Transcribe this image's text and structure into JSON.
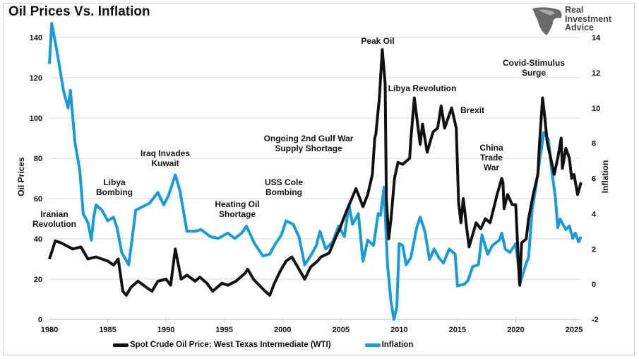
{
  "title": "Oil Prices Vs. Inflation",
  "logo": {
    "lines": [
      "Real",
      "Investment",
      "Advice"
    ]
  },
  "colors": {
    "oil": "#111111",
    "inflation": "#1a9ad6",
    "grid": "#d9d9d9"
  },
  "chart_data": {
    "type": "line",
    "title": "Oil Prices Vs. Inflation",
    "xlabel": "",
    "ylabel_left": "Oil Prices",
    "ylabel_right": "Inflation",
    "xlim": [
      1980,
      2025.8
    ],
    "ylim_left": [
      0,
      140
    ],
    "ylim_right": [
      -2,
      14
    ],
    "x_ticks": [
      "1980",
      "1985",
      "1990",
      "1995",
      "2000",
      "2005",
      "2010",
      "2015",
      "2020",
      "2025"
    ],
    "y_ticks_left": [
      "0",
      "20",
      "40",
      "60",
      "80",
      "100",
      "120",
      "140"
    ],
    "y_ticks_right": [
      "-2",
      "0",
      "2",
      "4",
      "6",
      "8",
      "10",
      "12",
      "14"
    ],
    "grid": true,
    "legend_position": "bottom",
    "series": [
      {
        "name": "Spot Crude Oil Price: West Texas Intermediate (WTI)",
        "axis": "left",
        "points": [
          [
            1980.0,
            30
          ],
          [
            1980.5,
            39
          ],
          [
            1981.0,
            38
          ],
          [
            1982.0,
            35
          ],
          [
            1982.7,
            36
          ],
          [
            1983.3,
            30
          ],
          [
            1984.0,
            31
          ],
          [
            1985.0,
            29
          ],
          [
            1985.5,
            27
          ],
          [
            1985.9,
            30
          ],
          [
            1986.3,
            14
          ],
          [
            1986.6,
            12
          ],
          [
            1987.0,
            16
          ],
          [
            1987.6,
            19
          ],
          [
            1988.3,
            16
          ],
          [
            1988.8,
            14
          ],
          [
            1989.3,
            19
          ],
          [
            1990.0,
            20
          ],
          [
            1990.4,
            17
          ],
          [
            1990.8,
            35
          ],
          [
            1991.3,
            20
          ],
          [
            1991.8,
            22
          ],
          [
            1992.5,
            19
          ],
          [
            1992.9,
            21
          ],
          [
            1993.5,
            18
          ],
          [
            1994.0,
            14
          ],
          [
            1994.8,
            18
          ],
          [
            1995.3,
            17
          ],
          [
            1996.0,
            19
          ],
          [
            1996.8,
            23
          ],
          [
            1997.0,
            25
          ],
          [
            1997.5,
            20
          ],
          [
            1998.0,
            17
          ],
          [
            1998.5,
            14
          ],
          [
            1998.9,
            12
          ],
          [
            1999.3,
            18
          ],
          [
            1999.8,
            24
          ],
          [
            2000.3,
            29
          ],
          [
            2000.8,
            31
          ],
          [
            2001.3,
            26
          ],
          [
            2001.9,
            20
          ],
          [
            2002.4,
            26
          ],
          [
            2003.0,
            29
          ],
          [
            2003.3,
            31
          ],
          [
            2004.0,
            33
          ],
          [
            2004.5,
            40
          ],
          [
            2004.9,
            45
          ],
          [
            2005.5,
            54
          ],
          [
            2006.3,
            65
          ],
          [
            2006.9,
            56
          ],
          [
            2007.3,
            62
          ],
          [
            2007.7,
            72
          ],
          [
            2007.9,
            90
          ],
          [
            2008.0,
            92
          ],
          [
            2008.3,
            110
          ],
          [
            2008.55,
            134
          ],
          [
            2008.8,
            117
          ],
          [
            2008.9,
            60
          ],
          [
            2009.1,
            40
          ],
          [
            2009.3,
            50
          ],
          [
            2009.6,
            70
          ],
          [
            2009.9,
            78
          ],
          [
            2010.3,
            77
          ],
          [
            2010.9,
            80
          ],
          [
            2011.0,
            89
          ],
          [
            2011.3,
            110
          ],
          [
            2011.8,
            87
          ],
          [
            2012.0,
            97
          ],
          [
            2012.4,
            83
          ],
          [
            2012.9,
            93
          ],
          [
            2013.3,
            95
          ],
          [
            2013.6,
            106
          ],
          [
            2013.9,
            95
          ],
          [
            2014.2,
            100
          ],
          [
            2014.5,
            105
          ],
          [
            2014.9,
            95
          ],
          [
            2015.1,
            58
          ],
          [
            2015.3,
            48
          ],
          [
            2015.5,
            60
          ],
          [
            2015.8,
            45
          ],
          [
            2016.0,
            36
          ],
          [
            2016.2,
            40
          ],
          [
            2016.6,
            48
          ],
          [
            2017.0,
            45
          ],
          [
            2017.4,
            50
          ],
          [
            2017.8,
            48
          ],
          [
            2018.1,
            55
          ],
          [
            2018.4,
            62
          ],
          [
            2018.8,
            70
          ],
          [
            2018.9,
            68
          ],
          [
            2019.0,
            55
          ],
          [
            2019.3,
            62
          ],
          [
            2019.7,
            57
          ],
          [
            2020.0,
            57
          ],
          [
            2020.3,
            20
          ],
          [
            2020.35,
            17
          ],
          [
            2020.5,
            38
          ],
          [
            2020.9,
            40
          ],
          [
            2021.1,
            50
          ],
          [
            2021.5,
            62
          ],
          [
            2021.9,
            72
          ],
          [
            2022.0,
            84
          ],
          [
            2022.3,
            110
          ],
          [
            2022.5,
            100
          ],
          [
            2022.7,
            88
          ],
          [
            2023.0,
            80
          ],
          [
            2023.3,
            72
          ],
          [
            2023.6,
            80
          ],
          [
            2023.9,
            90
          ],
          [
            2024.0,
            75
          ],
          [
            2024.3,
            85
          ],
          [
            2024.6,
            80
          ],
          [
            2024.8,
            70
          ],
          [
            2025.0,
            72
          ],
          [
            2025.3,
            62
          ],
          [
            2025.6,
            68
          ]
        ]
      },
      {
        "name": "Inflation",
        "axis": "right",
        "points": [
          [
            1980.0,
            12.5
          ],
          [
            1980.2,
            14.8
          ],
          [
            1980.7,
            13
          ],
          [
            1981.2,
            11
          ],
          [
            1981.6,
            10
          ],
          [
            1981.8,
            11
          ],
          [
            1982.2,
            8
          ],
          [
            1982.6,
            6.5
          ],
          [
            1982.9,
            4
          ],
          [
            1983.3,
            3.5
          ],
          [
            1983.6,
            2.5
          ],
          [
            1983.8,
            3.8
          ],
          [
            1984.0,
            4.5
          ],
          [
            1984.5,
            4.2
          ],
          [
            1985.0,
            3.6
          ],
          [
            1985.5,
            3.8
          ],
          [
            1985.8,
            3.2
          ],
          [
            1986.2,
            1.8
          ],
          [
            1986.8,
            1.1
          ],
          [
            1987.1,
            2.6
          ],
          [
            1987.4,
            4.2
          ],
          [
            1988.0,
            4.4
          ],
          [
            1988.6,
            4.6
          ],
          [
            1989.3,
            5.2
          ],
          [
            1989.8,
            4.5
          ],
          [
            1990.2,
            5.0
          ],
          [
            1990.8,
            6.2
          ],
          [
            1991.2,
            5.3
          ],
          [
            1991.8,
            3.0
          ],
          [
            1992.5,
            3.0
          ],
          [
            1993.0,
            3.1
          ],
          [
            1993.8,
            2.7
          ],
          [
            1994.5,
            2.6
          ],
          [
            1995.3,
            2.9
          ],
          [
            1995.9,
            2.6
          ],
          [
            1996.5,
            2.9
          ],
          [
            1996.9,
            3.3
          ],
          [
            1997.6,
            2.3
          ],
          [
            1998.3,
            1.6
          ],
          [
            1998.9,
            1.7
          ],
          [
            1999.3,
            2.2
          ],
          [
            1999.9,
            2.8
          ],
          [
            2000.3,
            3.6
          ],
          [
            2000.9,
            3.4
          ],
          [
            2001.4,
            2.7
          ],
          [
            2001.9,
            1.1
          ],
          [
            2002.4,
            1.6
          ],
          [
            2002.9,
            2.2
          ],
          [
            2003.2,
            3.0
          ],
          [
            2003.7,
            2.0
          ],
          [
            2004.3,
            2.4
          ],
          [
            2004.8,
            3.3
          ],
          [
            2005.3,
            2.7
          ],
          [
            2005.7,
            4.5
          ],
          [
            2006.0,
            3.4
          ],
          [
            2006.5,
            4.0
          ],
          [
            2006.9,
            1.3
          ],
          [
            2007.3,
            2.5
          ],
          [
            2007.8,
            2.2
          ],
          [
            2008.2,
            4.0
          ],
          [
            2008.4,
            3.9
          ],
          [
            2008.7,
            5.5
          ],
          [
            2009.0,
            1.1
          ],
          [
            2009.3,
            -1.0
          ],
          [
            2009.55,
            -2.0
          ],
          [
            2009.8,
            -1.3
          ],
          [
            2010.0,
            2.3
          ],
          [
            2010.3,
            2.2
          ],
          [
            2010.6,
            1.1
          ],
          [
            2011.0,
            1.5
          ],
          [
            2011.5,
            3.2
          ],
          [
            2011.8,
            3.8
          ],
          [
            2012.2,
            3.0
          ],
          [
            2012.6,
            1.4
          ],
          [
            2013.0,
            2.0
          ],
          [
            2013.4,
            1.5
          ],
          [
            2013.8,
            1.2
          ],
          [
            2014.3,
            2.0
          ],
          [
            2014.8,
            1.7
          ],
          [
            2015.0,
            -0.1
          ],
          [
            2015.6,
            0.0
          ],
          [
            2015.9,
            0.2
          ],
          [
            2016.3,
            1.0
          ],
          [
            2016.8,
            1.1
          ],
          [
            2017.1,
            2.8
          ],
          [
            2017.6,
            1.7
          ],
          [
            2018.0,
            2.2
          ],
          [
            2018.6,
            2.5
          ],
          [
            2018.8,
            2.9
          ],
          [
            2019.1,
            2.0
          ],
          [
            2019.5,
            1.8
          ],
          [
            2019.9,
            2.2
          ],
          [
            2020.0,
            2.3
          ],
          [
            2020.4,
            0.1
          ],
          [
            2020.9,
            1.2
          ],
          [
            2021.1,
            1.5
          ],
          [
            2021.4,
            4.2
          ],
          [
            2021.7,
            5.4
          ],
          [
            2022.0,
            6.8
          ],
          [
            2022.4,
            8.6
          ],
          [
            2022.8,
            8.2
          ],
          [
            2023.1,
            6.4
          ],
          [
            2023.4,
            4.9
          ],
          [
            2023.6,
            3.2
          ],
          [
            2023.8,
            3.7
          ],
          [
            2024.3,
            3.1
          ],
          [
            2024.6,
            3.3
          ],
          [
            2024.9,
            2.6
          ],
          [
            2025.1,
            2.9
          ],
          [
            2025.4,
            2.4
          ],
          [
            2025.6,
            2.7
          ]
        ]
      }
    ],
    "annotations": [
      {
        "lines": [
          "Iranian",
          "Revolution"
        ]
      },
      {
        "lines": [
          "Libya",
          "Bombing"
        ]
      },
      {
        "lines": [
          "Iraq Invades",
          "Kuwait"
        ]
      },
      {
        "lines": [
          "Heating Oil",
          "Shortage"
        ]
      },
      {
        "lines": [
          "USS Cole",
          "Bombing"
        ]
      },
      {
        "lines": [
          "Ongoing 2nd Gulf War",
          "Supply Shortage"
        ]
      },
      {
        "lines": [
          "Peak Oil"
        ]
      },
      {
        "lines": [
          "Libya Revolution"
        ]
      },
      {
        "lines": [
          "Brexit"
        ]
      },
      {
        "lines": [
          "China",
          "Trade",
          "War"
        ]
      },
      {
        "lines": [
          "Covid-Stimulus",
          "Surge"
        ]
      }
    ]
  }
}
